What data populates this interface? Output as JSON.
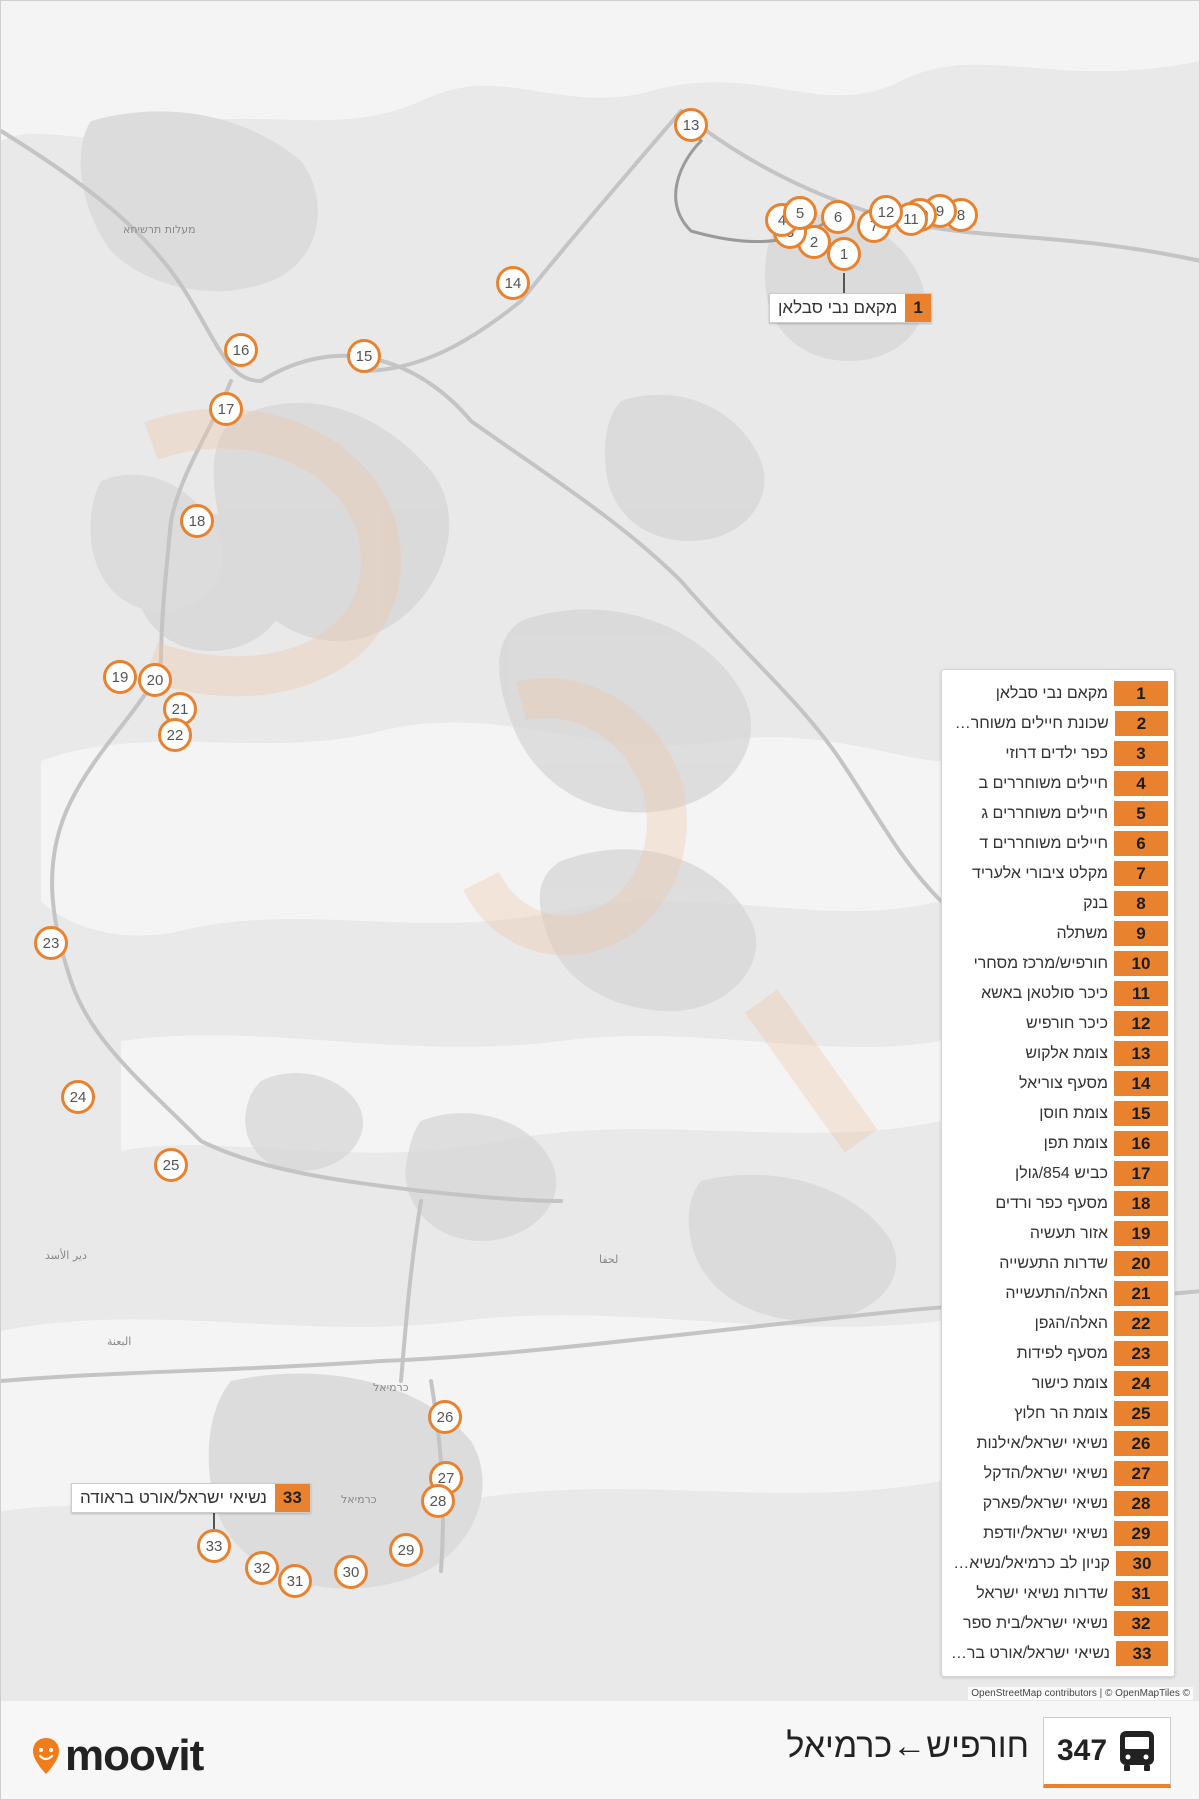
{
  "colors": {
    "accent": "#e8822e",
    "map_bg": "#e9e9e9",
    "road": "#c8c8c8",
    "land": "#dadada"
  },
  "map": {
    "place_labels": [
      {
        "id": "maalot",
        "text": "מעלות תרשיחא"
      },
      {
        "id": "deir",
        "text": "دير الأسد"
      },
      {
        "id": "biina",
        "text": "البعنة"
      },
      {
        "id": "karmiel_a",
        "text": "כרמיאל"
      },
      {
        "id": "karmiel_b",
        "text": "כרמיאל"
      },
      {
        "id": "lachfa",
        "text": "لحفا"
      }
    ],
    "markers": [
      {
        "n": "1"
      },
      {
        "n": "2"
      },
      {
        "n": "3"
      },
      {
        "n": "4"
      },
      {
        "n": "5"
      },
      {
        "n": "6"
      },
      {
        "n": "7"
      },
      {
        "n": "8"
      },
      {
        "n": "9"
      },
      {
        "n": "10"
      },
      {
        "n": "11"
      },
      {
        "n": "12"
      },
      {
        "n": "13"
      },
      {
        "n": "14"
      },
      {
        "n": "15"
      },
      {
        "n": "16"
      },
      {
        "n": "17"
      },
      {
        "n": "18"
      },
      {
        "n": "19"
      },
      {
        "n": "20"
      },
      {
        "n": "21"
      },
      {
        "n": "22"
      },
      {
        "n": "23"
      },
      {
        "n": "24"
      },
      {
        "n": "25"
      },
      {
        "n": "26"
      },
      {
        "n": "27"
      },
      {
        "n": "28"
      },
      {
        "n": "29"
      },
      {
        "n": "30"
      },
      {
        "n": "31"
      },
      {
        "n": "32"
      },
      {
        "n": "33"
      }
    ],
    "callouts": [
      {
        "number": "1",
        "name": "מקאם נבי סבלאן"
      },
      {
        "number": "33",
        "name": "נשיאי ישראל/אורט בראודה"
      }
    ],
    "attribution": "OpenStreetMap contributors | © OpenMapTiles ©"
  },
  "legend": [
    {
      "number": "1",
      "name": "מקאם נבי סבלאן"
    },
    {
      "number": "2",
      "name": "שכונת חיילים משוחררים"
    },
    {
      "number": "3",
      "name": "כפר ילדים דרוזי"
    },
    {
      "number": "4",
      "name": "חיילים משוחררים ב"
    },
    {
      "number": "5",
      "name": "חיילים משוחררים ג"
    },
    {
      "number": "6",
      "name": "חיילים משוחררים ד"
    },
    {
      "number": "7",
      "name": "מקלט ציבורי אלעריד"
    },
    {
      "number": "8",
      "name": "בנק"
    },
    {
      "number": "9",
      "name": "משתלה"
    },
    {
      "number": "10",
      "name": "חורפיש/מרכז מסחרי"
    },
    {
      "number": "11",
      "name": "כיכר סולטאן באשא"
    },
    {
      "number": "12",
      "name": "כיכר חורפיש"
    },
    {
      "number": "13",
      "name": "צומת אלקוש"
    },
    {
      "number": "14",
      "name": "מסעף צוריאל"
    },
    {
      "number": "15",
      "name": "צומת חוסן"
    },
    {
      "number": "16",
      "name": "צומת תפן"
    },
    {
      "number": "17",
      "name": "כביש 854/גולן"
    },
    {
      "number": "18",
      "name": "מסעף כפר ורדים"
    },
    {
      "number": "19",
      "name": "אזור תעשיה"
    },
    {
      "number": "20",
      "name": "שדרות התעשייה"
    },
    {
      "number": "21",
      "name": "האלה/התעשייה"
    },
    {
      "number": "22",
      "name": "האלה/הגפן"
    },
    {
      "number": "23",
      "name": "מסעף לפידות"
    },
    {
      "number": "24",
      "name": "צומת כישור"
    },
    {
      "number": "25",
      "name": "צומת הר חלוץ"
    },
    {
      "number": "26",
      "name": "נשיאי ישראל/אילנות"
    },
    {
      "number": "27",
      "name": "נשיאי ישראל/הדקל"
    },
    {
      "number": "28",
      "name": "נשיאי ישראל/פארק"
    },
    {
      "number": "29",
      "name": "נשיאי ישראל/יודפת"
    },
    {
      "number": "30",
      "name": "קניון לב כרמיאל/נשיאי ישראל"
    },
    {
      "number": "31",
      "name": "שדרות נשיאי ישראל"
    },
    {
      "number": "32",
      "name": "נשיאי ישראל/בית ספר"
    },
    {
      "number": "33",
      "name": "נשיאי ישראל/אורט בראודה"
    }
  ],
  "footer": {
    "brand": "moovit",
    "route_number": "347",
    "route_title": "חורפיש←כרמיאל"
  }
}
